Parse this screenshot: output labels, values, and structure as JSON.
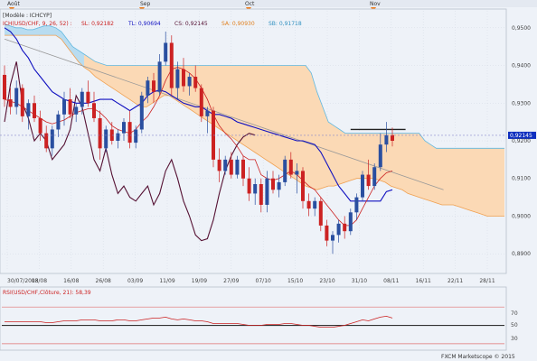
{
  "top_bar": {
    "months": [
      {
        "label": "Août",
        "x_pos_label": "Août"
      },
      {
        "label": "Sep"
      },
      {
        "label": "Oct"
      },
      {
        "label": "Nov"
      }
    ]
  },
  "main_panel": {
    "model_text": "[Modèle : ICHCYP]",
    "indicator_line": "ICH(USD/CHF, 9, 26, 52) :",
    "values": {
      "sl": "SL: 0,92182",
      "tl": "TL: 0,90694",
      "cs": "CS: 0,92145",
      "sa": "SA: 0,90930",
      "sb": "SB: 0,91718"
    },
    "current_price": "0,92145"
  },
  "rsi_panel": {
    "title": "RSI(USD/CHF,Clôture, 21): 58,39",
    "levels": [
      "70",
      "50",
      "30"
    ]
  },
  "footer": {
    "credit": "FXCM Marketscope © 2015"
  },
  "colors": {
    "background": "#eef2f8",
    "candle_up": "#2a4fa0",
    "candle_down": "#cc2222",
    "tenkan": "#cc2222",
    "kijun": "#1010c0",
    "chikou": "#551133",
    "cloud_fill": "#fbd9b5",
    "cloud_fill_bull": "#b8dcf0",
    "senkou_a": "#f0a050",
    "senkou_b": "#60b8e0",
    "trendline": "#999999",
    "resistance": "#222222"
  },
  "chart_data": [
    {
      "type": "candlestick",
      "title": "ICH(USD/CHF, 9, 26, 52)",
      "x_labels": [
        "30/07/2013",
        "08/08",
        "16/08",
        "26/08",
        "03/09",
        "11/09",
        "19/09",
        "27/09",
        "07/10",
        "15/10",
        "23/10",
        "31/10",
        "08/11",
        "16/11",
        "22/11",
        "28/11"
      ],
      "y_ticks": [
        "0,9500",
        "0,9400",
        "0,9300",
        "0,9200",
        "0,9100",
        "0,9000",
        "0,8900"
      ],
      "ylim": [
        0.8855,
        0.9545
      ],
      "candles": [
        [
          0.9375,
          0.94,
          0.929,
          0.931
        ],
        [
          0.931,
          0.934,
          0.927,
          0.929
        ],
        [
          0.929,
          0.936,
          0.927,
          0.934
        ],
        [
          0.934,
          0.935,
          0.925,
          0.9265
        ],
        [
          0.9265,
          0.931,
          0.923,
          0.93
        ],
        [
          0.93,
          0.932,
          0.925,
          0.926
        ],
        [
          0.926,
          0.928,
          0.92,
          0.922
        ],
        [
          0.922,
          0.924,
          0.917,
          0.918
        ],
        [
          0.918,
          0.924,
          0.916,
          0.923
        ],
        [
          0.923,
          0.928,
          0.921,
          0.927
        ],
        [
          0.927,
          0.933,
          0.924,
          0.931
        ],
        [
          0.931,
          0.934,
          0.926,
          0.927
        ],
        [
          0.927,
          0.93,
          0.925,
          0.929
        ],
        [
          0.929,
          0.934,
          0.927,
          0.933
        ],
        [
          0.933,
          0.936,
          0.929,
          0.93
        ],
        [
          0.93,
          0.933,
          0.925,
          0.926
        ],
        [
          0.926,
          0.928,
          0.915,
          0.918
        ],
        [
          0.918,
          0.924,
          0.917,
          0.923
        ],
        [
          0.923,
          0.925,
          0.919,
          0.92
        ],
        [
          0.92,
          0.923,
          0.918,
          0.922
        ],
        [
          0.922,
          0.926,
          0.92,
          0.925
        ],
        [
          0.925,
          0.928,
          0.918,
          0.9195
        ],
        [
          0.9195,
          0.924,
          0.918,
          0.923
        ],
        [
          0.923,
          0.933,
          0.922,
          0.932
        ],
        [
          0.932,
          0.937,
          0.93,
          0.936
        ],
        [
          0.936,
          0.938,
          0.93,
          0.933
        ],
        [
          0.933,
          0.943,
          0.932,
          0.941
        ],
        [
          0.941,
          0.949,
          0.94,
          0.946
        ],
        [
          0.946,
          0.948,
          0.932,
          0.934
        ],
        [
          0.934,
          0.941,
          0.931,
          0.939
        ],
        [
          0.939,
          0.942,
          0.933,
          0.9345
        ],
        [
          0.9345,
          0.938,
          0.932,
          0.937
        ],
        [
          0.937,
          0.94,
          0.933,
          0.934
        ],
        [
          0.934,
          0.935,
          0.925,
          0.9265
        ],
        [
          0.9265,
          0.929,
          0.922,
          0.928
        ],
        [
          0.928,
          0.929,
          0.913,
          0.915
        ],
        [
          0.915,
          0.918,
          0.909,
          0.912
        ],
        [
          0.912,
          0.916,
          0.911,
          0.915
        ],
        [
          0.915,
          0.917,
          0.91,
          0.911
        ],
        [
          0.911,
          0.916,
          0.91,
          0.915
        ],
        [
          0.915,
          0.916,
          0.908,
          0.91
        ],
        [
          0.91,
          0.913,
          0.904,
          0.906
        ],
        [
          0.906,
          0.91,
          0.903,
          0.9085
        ],
        [
          0.9085,
          0.91,
          0.901,
          0.903
        ],
        [
          0.903,
          0.912,
          0.901,
          0.91
        ],
        [
          0.91,
          0.912,
          0.906,
          0.907
        ],
        [
          0.907,
          0.911,
          0.905,
          0.909
        ],
        [
          0.909,
          0.916,
          0.908,
          0.915
        ],
        [
          0.915,
          0.917,
          0.91,
          0.911
        ],
        [
          0.911,
          0.914,
          0.906,
          0.912
        ],
        [
          0.912,
          0.913,
          0.902,
          0.904
        ],
        [
          0.904,
          0.906,
          0.9,
          0.902
        ],
        [
          0.902,
          0.905,
          0.9,
          0.904
        ],
        [
          0.904,
          0.905,
          0.896,
          0.8975
        ],
        [
          0.8975,
          0.899,
          0.892,
          0.8935
        ],
        [
          0.8935,
          0.896,
          0.89,
          0.895
        ],
        [
          0.895,
          0.899,
          0.893,
          0.898
        ],
        [
          0.898,
          0.9,
          0.894,
          0.896
        ],
        [
          0.896,
          0.902,
          0.895,
          0.901
        ],
        [
          0.901,
          0.906,
          0.899,
          0.905
        ],
        [
          0.905,
          0.912,
          0.904,
          0.911
        ],
        [
          0.911,
          0.915,
          0.907,
          0.908
        ],
        [
          0.908,
          0.914,
          0.907,
          0.913
        ],
        [
          0.913,
          0.922,
          0.912,
          0.919
        ],
        [
          0.919,
          0.925,
          0.917,
          0.9215
        ],
        [
          0.9215,
          0.9235,
          0.9185,
          0.92
        ]
      ],
      "tenkan": [
        0.931,
        0.9305,
        0.93,
        0.929,
        0.928,
        0.927,
        0.926,
        0.925,
        0.9245,
        0.925,
        0.9255,
        0.9265,
        0.9275,
        0.928,
        0.9285,
        0.9285,
        0.9275,
        0.926,
        0.924,
        0.923,
        0.9225,
        0.922,
        0.923,
        0.925,
        0.9265,
        0.929,
        0.932,
        0.936,
        0.939,
        0.9395,
        0.939,
        0.938,
        0.9365,
        0.934,
        0.931,
        0.927,
        0.924,
        0.922,
        0.9205,
        0.9185,
        0.916,
        0.915,
        0.915,
        0.911,
        0.91,
        0.9095,
        0.91,
        0.911,
        0.912,
        0.911,
        0.9095,
        0.908,
        0.907,
        0.905,
        0.903,
        0.901,
        0.899,
        0.8975,
        0.8975,
        0.899,
        0.902,
        0.905,
        0.908,
        0.91,
        0.9115,
        0.912
      ],
      "kijun": [
        0.95,
        0.949,
        0.947,
        0.944,
        0.942,
        0.939,
        0.937,
        0.935,
        0.933,
        0.932,
        0.931,
        0.9305,
        0.93,
        0.93,
        0.93,
        0.9305,
        0.931,
        0.931,
        0.931,
        0.93,
        0.929,
        0.928,
        0.929,
        0.93,
        0.932,
        0.933,
        0.9335,
        0.933,
        0.932,
        0.931,
        0.93,
        0.9295,
        0.929,
        0.929,
        0.928,
        0.927,
        0.927,
        0.9265,
        0.926,
        0.925,
        0.9245,
        0.924,
        0.9235,
        0.923,
        0.9225,
        0.922,
        0.9215,
        0.921,
        0.9205,
        0.92,
        0.92,
        0.9195,
        0.919,
        0.917,
        0.914,
        0.911,
        0.908,
        0.906,
        0.904,
        0.904,
        0.904,
        0.904,
        0.904,
        0.904,
        0.9065,
        0.907
      ],
      "chikou": [
        0.925,
        0.935,
        0.941,
        0.93,
        0.926,
        0.92,
        0.922,
        0.92,
        0.915,
        0.917,
        0.919,
        0.923,
        0.932,
        0.929,
        0.922,
        0.915,
        0.912,
        0.918,
        0.911,
        0.906,
        0.908,
        0.905,
        0.904,
        0.906,
        0.908,
        0.903,
        0.906,
        0.912,
        0.915,
        0.91,
        0.904,
        0.9,
        0.895,
        0.8935,
        0.894,
        0.899,
        0.906,
        0.912,
        0.916,
        0.919,
        0.921,
        0.922,
        0.9215
      ],
      "cloud_upper": [
        0.951,
        0.9505,
        0.95,
        0.95,
        0.9495,
        0.9495,
        0.95,
        0.9505,
        0.9505,
        0.95,
        0.949,
        0.947,
        0.945,
        0.944,
        0.943,
        0.942,
        0.941,
        0.9405,
        0.94,
        0.94,
        0.94,
        0.94,
        0.94,
        0.94,
        0.94,
        0.94,
        0.94,
        0.94,
        0.94,
        0.94,
        0.94,
        0.94,
        0.94,
        0.94,
        0.94,
        0.94,
        0.94,
        0.94,
        0.94,
        0.94,
        0.94,
        0.94,
        0.94,
        0.94,
        0.94,
        0.94,
        0.94,
        0.94,
        0.94,
        0.94,
        0.94,
        0.94,
        0.94,
        0.94,
        0.938,
        0.933,
        0.929,
        0.925,
        0.924,
        0.923,
        0.922,
        0.922,
        0.922,
        0.922,
        0.922,
        0.922,
        0.922,
        0.922,
        0.922,
        0.922,
        0.922,
        0.922,
        0.922,
        0.922,
        0.92,
        0.919,
        0.918,
        0.918,
        0.918,
        0.918,
        0.918,
        0.918,
        0.918,
        0.918,
        0.918,
        0.918,
        0.918,
        0.918,
        0.918
      ],
      "cloud_lower": [
        0.948,
        0.948,
        0.948,
        0.948,
        0.948,
        0.948,
        0.948,
        0.948,
        0.948,
        0.948,
        0.947,
        0.945,
        0.943,
        0.941,
        0.9395,
        0.9385,
        0.937,
        0.936,
        0.935,
        0.934,
        0.933,
        0.932,
        0.931,
        0.93,
        0.929,
        0.929,
        0.93,
        0.931,
        0.932,
        0.932,
        0.931,
        0.93,
        0.929,
        0.928,
        0.927,
        0.926,
        0.925,
        0.924,
        0.923,
        0.922,
        0.921,
        0.92,
        0.919,
        0.918,
        0.917,
        0.916,
        0.915,
        0.914,
        0.913,
        0.912,
        0.911,
        0.91,
        0.909,
        0.908,
        0.9075,
        0.907,
        0.9075,
        0.908,
        0.908,
        0.9085,
        0.909,
        0.9095,
        0.91,
        0.91,
        0.91,
        0.91,
        0.9095,
        0.909,
        0.908,
        0.9075,
        0.907,
        0.906,
        0.9055,
        0.905,
        0.9045,
        0.904,
        0.9035,
        0.903,
        0.903,
        0.903,
        0.9025,
        0.902,
        0.9015,
        0.901,
        0.9005,
        0.9,
        0.9,
        0.9,
        0.9
      ],
      "cloud_bull_segment": [
        0,
        14
      ],
      "trendline": [
        [
          0.947,
          0
        ],
        [
          0.907,
          66
        ]
      ],
      "resistance": [
        0.923,
        58,
        66
      ],
      "current_price": 0.92145
    },
    {
      "type": "line",
      "title": "RSI(USD/CHF,Clôture, 21): 58,39",
      "ylim": [
        25,
        80
      ],
      "levels": [
        70,
        50,
        30
      ],
      "values": [
        54,
        54,
        54,
        54,
        54,
        54,
        54,
        53,
        53,
        54,
        55,
        55,
        55,
        56,
        56,
        56,
        55,
        55,
        55,
        56,
        56,
        55,
        55,
        56,
        57,
        58,
        58,
        59,
        57,
        56,
        57,
        56,
        55,
        55,
        54,
        52,
        52,
        52,
        52,
        52,
        51,
        50,
        50,
        50,
        51,
        51,
        51,
        52,
        52,
        51,
        50,
        50,
        49,
        48,
        48,
        48,
        49,
        50,
        52,
        54,
        56,
        55,
        57,
        59,
        60,
        58
      ]
    }
  ]
}
